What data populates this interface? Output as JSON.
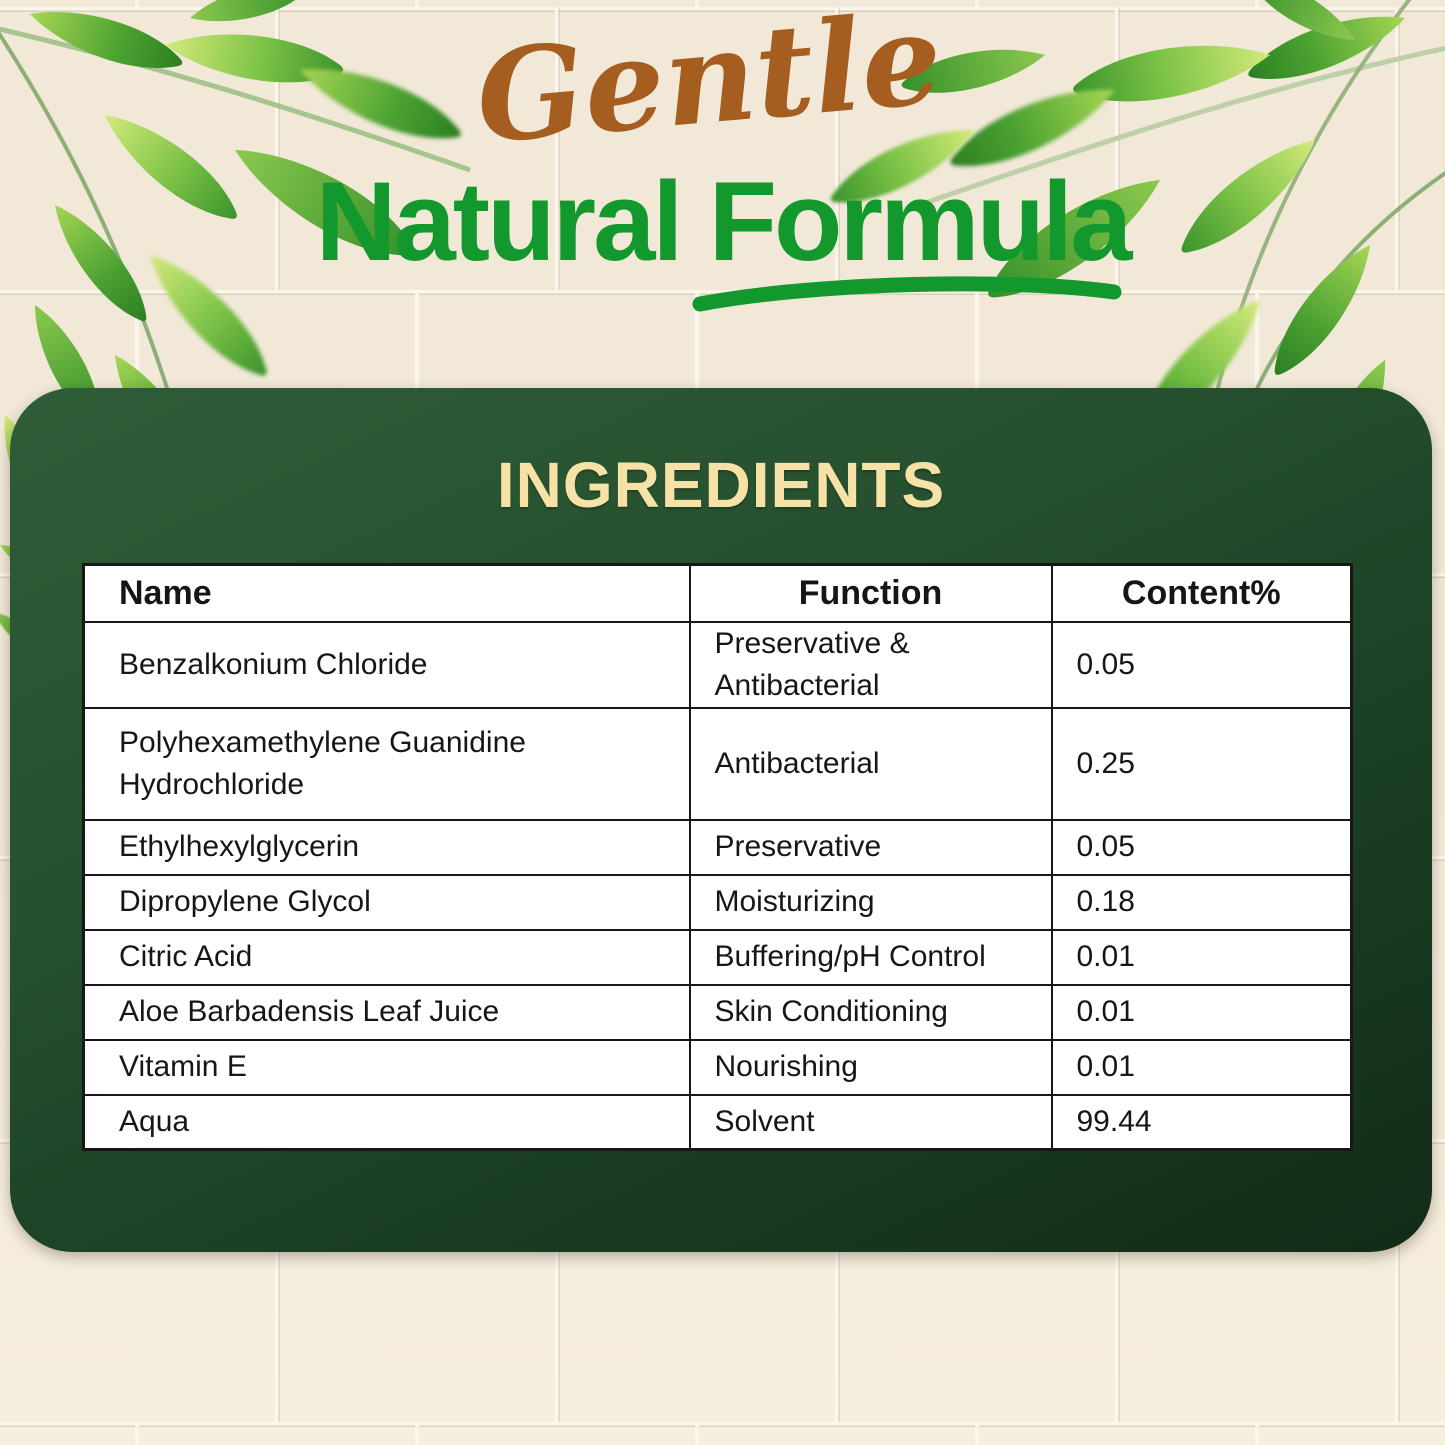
{
  "page": {
    "script_heading": "Gentle",
    "main_heading": "Natural Formula",
    "panel_title": "INGREDIENTS"
  },
  "table": {
    "columns": [
      "Name",
      "Function",
      "Content%"
    ],
    "rows": [
      [
        "Benzalkonium Chloride",
        "Preservative & Antibacterial",
        "0.05"
      ],
      [
        "Polyhexamethylene Guanidine Hydrochloride",
        "Antibacterial",
        "0.25"
      ],
      [
        "Ethylhexylglycerin",
        "Preservative",
        "0.05"
      ],
      [
        "Dipropylene Glycol",
        "Moisturizing",
        "0.18"
      ],
      [
        "Citric Acid",
        "Buffering/pH Control",
        "0.01"
      ],
      [
        "Aloe Barbadensis Leaf Juice",
        "Skin Conditioning",
        "0.01"
      ],
      [
        "Vitamin E",
        "Nourishing",
        "0.01"
      ],
      [
        "Aqua",
        "Solvent",
        "99.44"
      ]
    ]
  },
  "decor": {
    "corner_art": "bamboo-leaves",
    "background": "cream-tiled-wall"
  },
  "colors": {
    "accent_green": "#12982d",
    "script_brown": "#a55e20",
    "panel_green_light": "#2f5d38",
    "panel_green_dark": "#122b18",
    "title_gold": "#f6e2a7",
    "background_cream": "#f2e9d8"
  }
}
